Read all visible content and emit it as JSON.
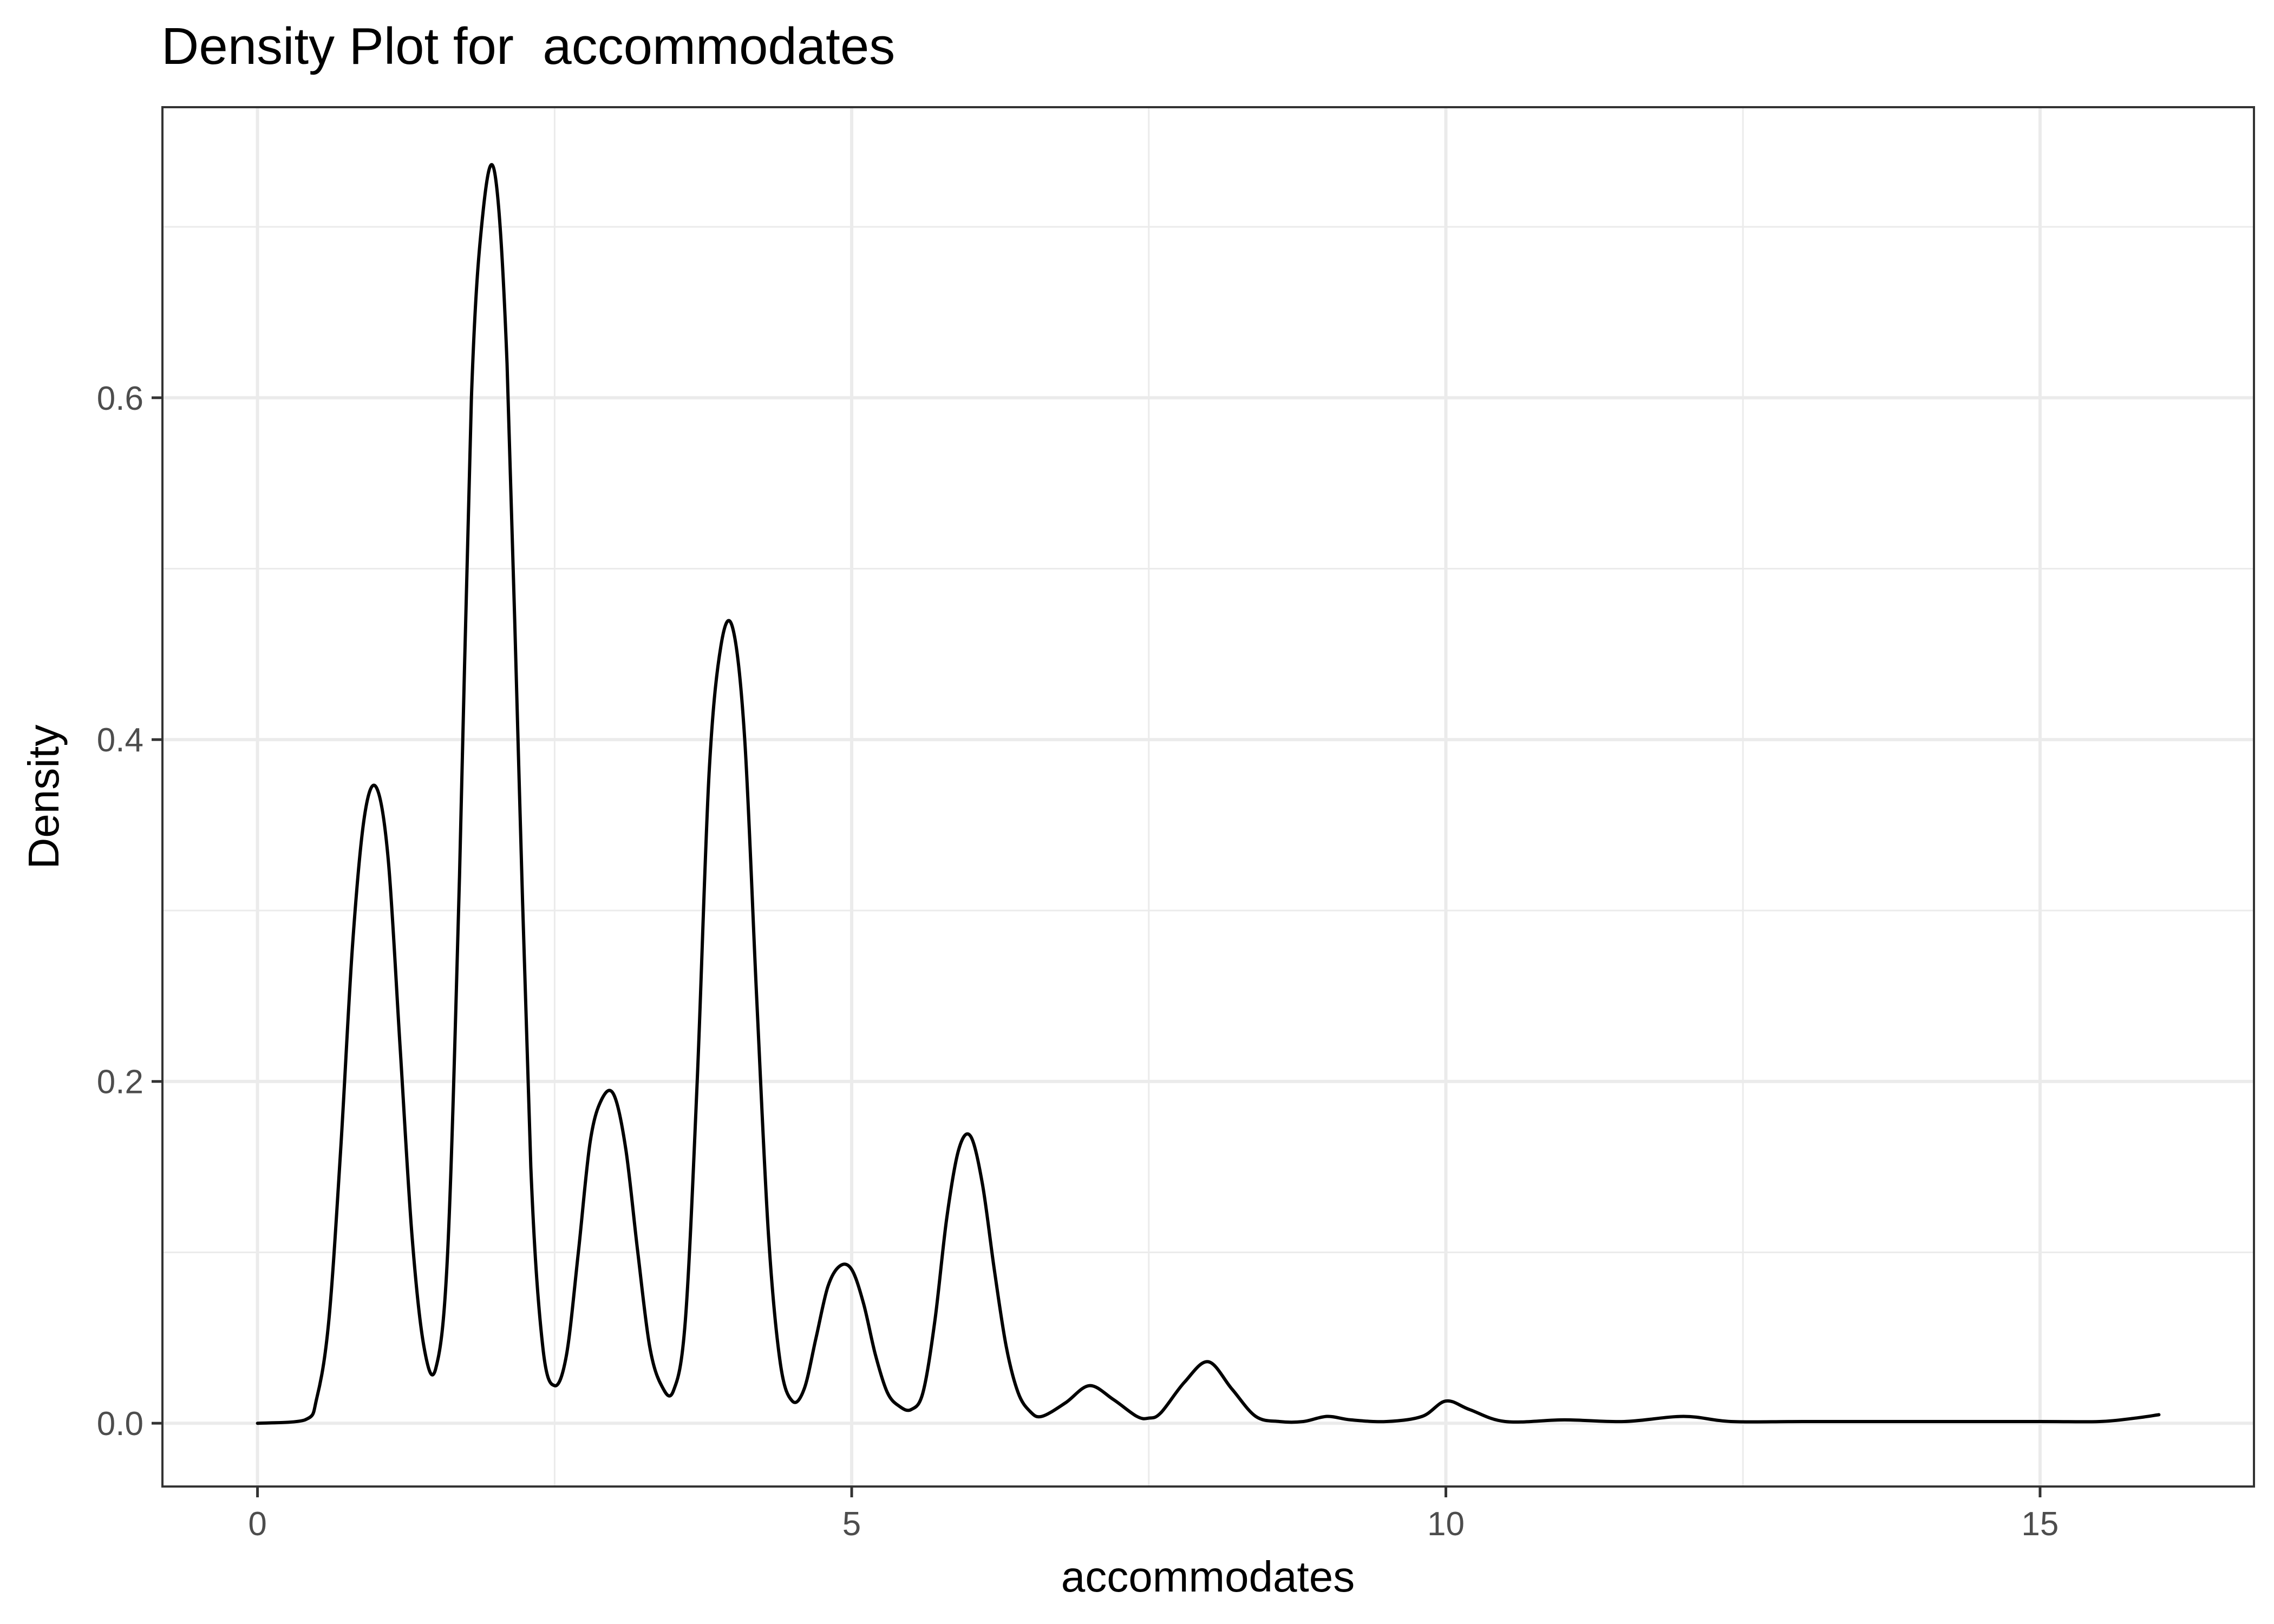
{
  "chart_data": {
    "type": "line",
    "title": "Density Plot for  accommodates",
    "xlabel": "accommodates",
    "ylabel": "Density",
    "xlim": [
      -0.8,
      16.8
    ],
    "ylim": [
      -0.037,
      0.77
    ],
    "x_ticks": [
      0,
      5,
      10,
      15
    ],
    "x_tick_labels": [
      "0",
      "5",
      "10",
      "15"
    ],
    "x_minor_ticks": [
      2.5,
      7.5,
      12.5
    ],
    "y_ticks": [
      0.0,
      0.2,
      0.4,
      0.6
    ],
    "y_tick_labels": [
      "0.0",
      "0.2",
      "0.4",
      "0.6"
    ],
    "y_minor_ticks": [
      0.1,
      0.3,
      0.5,
      0.7
    ],
    "grid": true,
    "series": [
      {
        "x": [
          0,
          0.4,
          0.5,
          0.6,
          0.7,
          0.8,
          0.9,
          1.0,
          1.1,
          1.2,
          1.3,
          1.4,
          1.5,
          1.6,
          1.7,
          1.8,
          1.9,
          2.0,
          2.1,
          2.2,
          2.3,
          2.4,
          2.5,
          2.6,
          2.7,
          2.8,
          2.9,
          3.0,
          3.1,
          3.2,
          3.3,
          3.4,
          3.5,
          3.6,
          3.7,
          3.8,
          3.9,
          4.0,
          4.1,
          4.2,
          4.3,
          4.4,
          4.5,
          4.6,
          4.7,
          4.8,
          4.9,
          5.0,
          5.1,
          5.2,
          5.3,
          5.4,
          5.5,
          5.6,
          5.7,
          5.8,
          5.9,
          6.0,
          6.1,
          6.2,
          6.3,
          6.4,
          6.5,
          6.6,
          6.8,
          7.0,
          7.2,
          7.4,
          7.5,
          7.6,
          7.8,
          8.0,
          8.2,
          8.4,
          8.6,
          8.8,
          9.0,
          9.2,
          9.5,
          9.8,
          10.0,
          10.2,
          10.5,
          11.0,
          11.5,
          12.0,
          12.4,
          13.0,
          14.0,
          15.0,
          15.5,
          15.8,
          16.0
        ],
        "y": [
          0.0,
          0.002,
          0.015,
          0.06,
          0.16,
          0.28,
          0.355,
          0.372,
          0.33,
          0.22,
          0.11,
          0.045,
          0.032,
          0.1,
          0.32,
          0.6,
          0.71,
          0.73,
          0.62,
          0.38,
          0.15,
          0.045,
          0.022,
          0.04,
          0.1,
          0.165,
          0.19,
          0.192,
          0.16,
          0.1,
          0.045,
          0.022,
          0.019,
          0.06,
          0.2,
          0.38,
          0.455,
          0.465,
          0.4,
          0.25,
          0.11,
          0.035,
          0.013,
          0.02,
          0.05,
          0.08,
          0.092,
          0.09,
          0.07,
          0.04,
          0.018,
          0.01,
          0.008,
          0.018,
          0.06,
          0.12,
          0.16,
          0.168,
          0.14,
          0.09,
          0.045,
          0.018,
          0.007,
          0.004,
          0.012,
          0.022,
          0.014,
          0.004,
          0.003,
          0.006,
          0.024,
          0.036,
          0.02,
          0.004,
          0.001,
          0.001,
          0.004,
          0.002,
          0.001,
          0.004,
          0.013,
          0.008,
          0.001,
          0.002,
          0.001,
          0.004,
          0.001,
          0.001,
          0.001,
          0.001,
          0.001,
          0.003,
          0.005
        ]
      }
    ]
  }
}
